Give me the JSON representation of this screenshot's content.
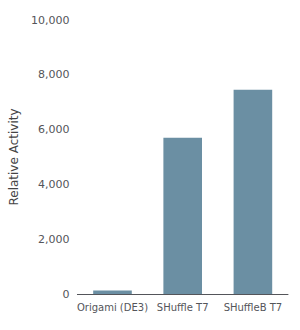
{
  "chart_data": {
    "type": "bar",
    "categories": [
      "Origami (DE3)",
      "SHuffle T7",
      "SHuffleB T7"
    ],
    "values": [
      130,
      5700,
      7450
    ],
    "color": "#6b8fa3",
    "ylabel": "Relative Activity",
    "ylim": [
      0,
      10000
    ],
    "yticks": [
      0,
      {
        "value": 2000,
        "label": "2,000"
      },
      {
        "value": 4000,
        "label": "4,000"
      },
      {
        "value": 6000,
        "label": "6,000"
      },
      {
        "value": 8000,
        "label": "8,000"
      },
      {
        "value": 10000,
        "label": "10,000"
      }
    ],
    "grid": false
  }
}
